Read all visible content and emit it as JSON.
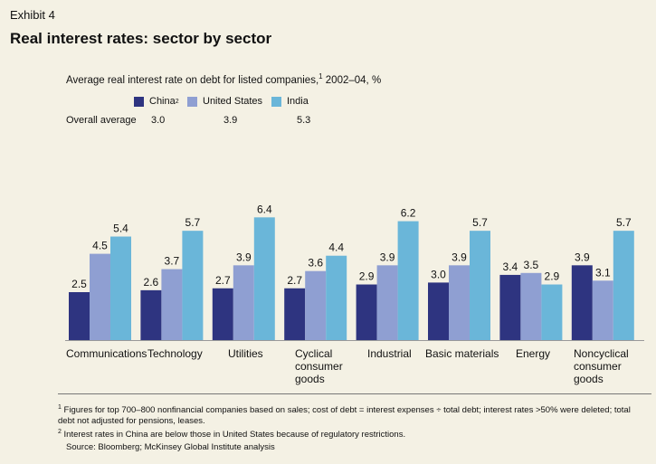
{
  "exhibit": "Exhibit 4",
  "title": "Real interest rates: sector by sector",
  "subtitle": {
    "text": "Average real interest rate on debt for listed companies,",
    "sup": "1",
    "suffix": " 2002–04, %"
  },
  "legend": [
    {
      "name": "China",
      "sup": "2",
      "color": "#2e3480"
    },
    {
      "name": "United States",
      "sup": "",
      "color": "#8f9fd2"
    },
    {
      "name": "India",
      "sup": "",
      "color": "#6ab6d9"
    }
  ],
  "overall_average": {
    "label": "Overall average",
    "values": [
      "3.0",
      "3.9",
      "5.3"
    ]
  },
  "chart_data": {
    "type": "bar",
    "ylim": [
      0,
      7
    ],
    "grid": false,
    "categories": [
      "Communications",
      "Technology",
      "Utilities",
      "Cyclical consumer goods",
      "Industrial",
      "Basic materials",
      "Energy",
      "Noncyclical consumer goods"
    ],
    "series": [
      {
        "name": "China",
        "values": [
          2.5,
          2.6,
          2.7,
          2.7,
          2.9,
          3.0,
          3.4,
          3.9
        ]
      },
      {
        "name": "United States",
        "values": [
          4.5,
          3.7,
          3.9,
          3.6,
          3.9,
          3.9,
          3.5,
          3.1
        ]
      },
      {
        "name": "India",
        "values": [
          5.4,
          5.7,
          6.4,
          4.4,
          6.2,
          5.7,
          2.9,
          5.7
        ]
      }
    ]
  },
  "category_labels": [
    [
      "Communications"
    ],
    [
      "Technology"
    ],
    [
      "Utilities"
    ],
    [
      "Cyclical",
      "consumer",
      "goods"
    ],
    [
      "Industrial"
    ],
    [
      "Basic materials"
    ],
    [
      "Energy"
    ],
    [
      "Noncyclical",
      "consumer",
      "goods"
    ]
  ],
  "footnotes": {
    "note1_sup": "1",
    "note1": "Figures for top 700–800 nonfinancial companies based on sales; cost of debt = interest expenses ÷ total debt; interest rates >50% were deleted; total debt not adjusted for pensions, leases.",
    "note2_sup": "2",
    "note2": "Interest rates in China are below those in United States because of regulatory restrictions.",
    "source": "Source: Bloomberg; McKinsey Global Institute analysis"
  }
}
